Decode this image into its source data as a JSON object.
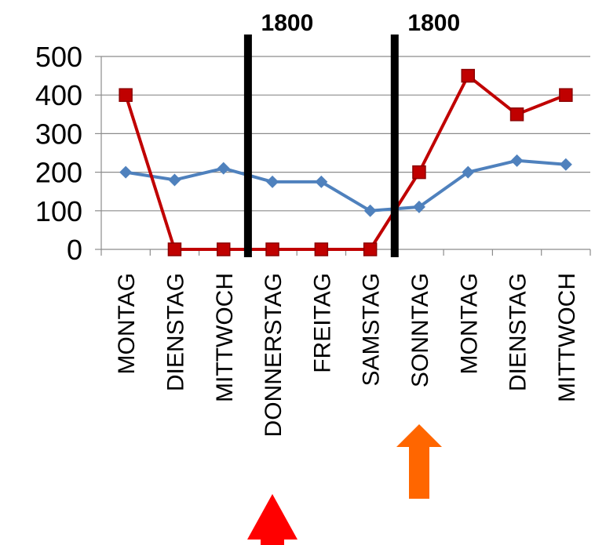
{
  "chart_data": {
    "type": "line",
    "title": "",
    "xlabel": "",
    "ylabel": "",
    "categories": [
      "MONTAG",
      "DIENSTAG",
      "MITTWOCH",
      "DONNERSTAG",
      "FREITAG",
      "SAMSTAG",
      "SONNTAG",
      "MONTAG",
      "DIENSTAG",
      "MITTWOCH"
    ],
    "ylim": [
      0,
      500
    ],
    "yticks": [
      "0",
      "100",
      "200",
      "300",
      "400",
      "500"
    ],
    "grid": true,
    "legend": "none",
    "series": [
      {
        "color": "#4f81bd",
        "marker": "diamond",
        "values": [
          200,
          180,
          210,
          175,
          175,
          100,
          110,
          200,
          230,
          220
        ]
      },
      {
        "color": "#c00000",
        "marker": "square",
        "values": [
          400,
          0,
          0,
          0,
          0,
          0,
          200,
          450,
          350,
          400
        ]
      }
    ],
    "vertical_markers": [
      {
        "label": "1800",
        "boundary_after_index": 3.0,
        "color": "#000000"
      },
      {
        "label": "1800",
        "boundary_after_index": 6.0,
        "color": "#000000"
      }
    ],
    "arrows": [
      {
        "category_index": 3,
        "color": "#ff0000",
        "direction": "up"
      },
      {
        "category_index": 6,
        "color": "#ff6600",
        "direction": "up"
      }
    ]
  }
}
